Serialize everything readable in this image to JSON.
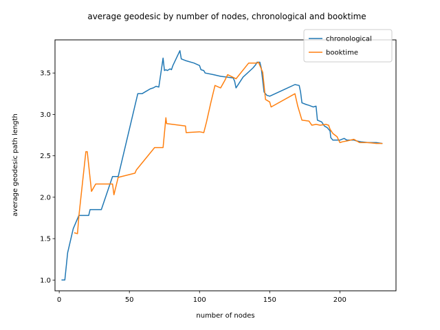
{
  "chart_data": {
    "type": "line",
    "title": "average geodesic by number of nodes, chronological and booktime",
    "xlabel": "number of nodes",
    "ylabel": "average geodesic path length",
    "xlim": [
      -3,
      240
    ],
    "ylim": [
      0.87,
      3.9
    ],
    "xticks": [
      0,
      50,
      100,
      150,
      200
    ],
    "yticks": [
      1.0,
      1.5,
      2.0,
      2.5,
      3.0,
      3.5
    ],
    "ytick_labels": [
      "1.0",
      "1.5",
      "2.0",
      "2.5",
      "3.0",
      "3.5"
    ],
    "xtick_labels": [
      "0",
      "50",
      "100",
      "150",
      "200"
    ],
    "grid": false,
    "legend_position": "top-right",
    "series": [
      {
        "name": "chronological",
        "color": "#1f77b4",
        "points": [
          [
            2,
            1.0
          ],
          [
            4,
            1.0
          ],
          [
            6,
            1.33
          ],
          [
            10,
            1.62
          ],
          [
            14,
            1.78
          ],
          [
            18,
            1.78
          ],
          [
            21,
            1.78
          ],
          [
            22,
            1.85
          ],
          [
            30,
            1.85
          ],
          [
            38,
            2.25
          ],
          [
            42,
            2.25
          ],
          [
            56,
            3.25
          ],
          [
            59,
            3.25
          ],
          [
            62,
            3.28
          ],
          [
            65,
            3.31
          ],
          [
            67,
            3.32
          ],
          [
            69,
            3.34
          ],
          [
            71,
            3.33
          ],
          [
            74,
            3.68
          ],
          [
            75,
            3.53
          ],
          [
            76,
            3.54
          ],
          [
            77,
            3.53
          ],
          [
            79,
            3.55
          ],
          [
            80,
            3.54
          ],
          [
            81,
            3.59
          ],
          [
            86,
            3.77
          ],
          [
            87,
            3.67
          ],
          [
            90,
            3.65
          ],
          [
            96,
            3.62
          ],
          [
            100,
            3.59
          ],
          [
            101,
            3.54
          ],
          [
            103,
            3.53
          ],
          [
            104,
            3.5
          ],
          [
            110,
            3.48
          ],
          [
            115,
            3.46
          ],
          [
            120,
            3.45
          ],
          [
            124,
            3.44
          ],
          [
            125,
            3.4
          ],
          [
            126,
            3.32
          ],
          [
            131,
            3.45
          ],
          [
            138,
            3.56
          ],
          [
            140,
            3.6
          ],
          [
            141,
            3.63
          ],
          [
            143,
            3.63
          ],
          [
            144,
            3.56
          ],
          [
            146,
            3.27
          ],
          [
            148,
            3.23
          ],
          [
            150,
            3.22
          ],
          [
            168,
            3.36
          ],
          [
            171,
            3.35
          ],
          [
            172,
            3.27
          ],
          [
            173,
            3.14
          ],
          [
            176,
            3.12
          ],
          [
            178,
            3.11
          ],
          [
            181,
            3.09
          ],
          [
            183,
            3.1
          ],
          [
            184,
            2.93
          ],
          [
            187,
            2.91
          ],
          [
            189,
            2.86
          ],
          [
            191,
            2.84
          ],
          [
            193,
            2.8
          ],
          [
            193.5,
            2.72
          ],
          [
            195,
            2.69
          ],
          [
            200,
            2.69
          ],
          [
            203,
            2.71
          ],
          [
            205,
            2.69
          ],
          [
            210,
            2.69
          ],
          [
            212,
            2.68
          ],
          [
            215,
            2.67
          ],
          [
            220,
            2.66
          ],
          [
            226,
            2.66
          ],
          [
            230,
            2.65
          ]
        ]
      },
      {
        "name": "booktime",
        "color": "#ff7f0e",
        "points": [
          [
            11,
            1.57
          ],
          [
            13,
            1.56
          ],
          [
            14,
            1.77
          ],
          [
            19,
            2.55
          ],
          [
            20,
            2.55
          ],
          [
            23,
            2.07
          ],
          [
            26,
            2.16
          ],
          [
            37,
            2.16
          ],
          [
            38,
            2.16
          ],
          [
            39,
            2.03
          ],
          [
            42,
            2.24
          ],
          [
            54,
            2.29
          ],
          [
            55,
            2.33
          ],
          [
            68,
            2.6
          ],
          [
            74,
            2.6
          ],
          [
            76,
            2.96
          ],
          [
            76.5,
            2.89
          ],
          [
            90,
            2.86
          ],
          [
            90.5,
            2.78
          ],
          [
            100,
            2.79
          ],
          [
            103,
            2.78
          ],
          [
            105,
            2.91
          ],
          [
            108,
            3.14
          ],
          [
            111,
            3.35
          ],
          [
            115,
            3.32
          ],
          [
            118,
            3.41
          ],
          [
            120,
            3.48
          ],
          [
            126,
            3.43
          ],
          [
            135,
            3.62
          ],
          [
            138,
            3.62
          ],
          [
            141,
            3.62
          ],
          [
            142,
            3.63
          ],
          [
            145,
            3.51
          ],
          [
            147,
            3.18
          ],
          [
            150,
            3.15
          ],
          [
            151,
            3.09
          ],
          [
            168,
            3.25
          ],
          [
            170,
            3.1
          ],
          [
            173,
            2.93
          ],
          [
            178,
            2.92
          ],
          [
            180,
            2.87
          ],
          [
            183,
            2.88
          ],
          [
            186,
            2.87
          ],
          [
            190,
            2.88
          ],
          [
            192,
            2.87
          ],
          [
            193,
            2.82
          ],
          [
            195,
            2.77
          ],
          [
            198,
            2.73
          ],
          [
            200,
            2.66
          ],
          [
            202,
            2.67
          ],
          [
            205,
            2.68
          ],
          [
            210,
            2.7
          ],
          [
            214,
            2.66
          ],
          [
            220,
            2.66
          ],
          [
            226,
            2.65
          ],
          [
            230,
            2.65
          ]
        ]
      }
    ]
  }
}
